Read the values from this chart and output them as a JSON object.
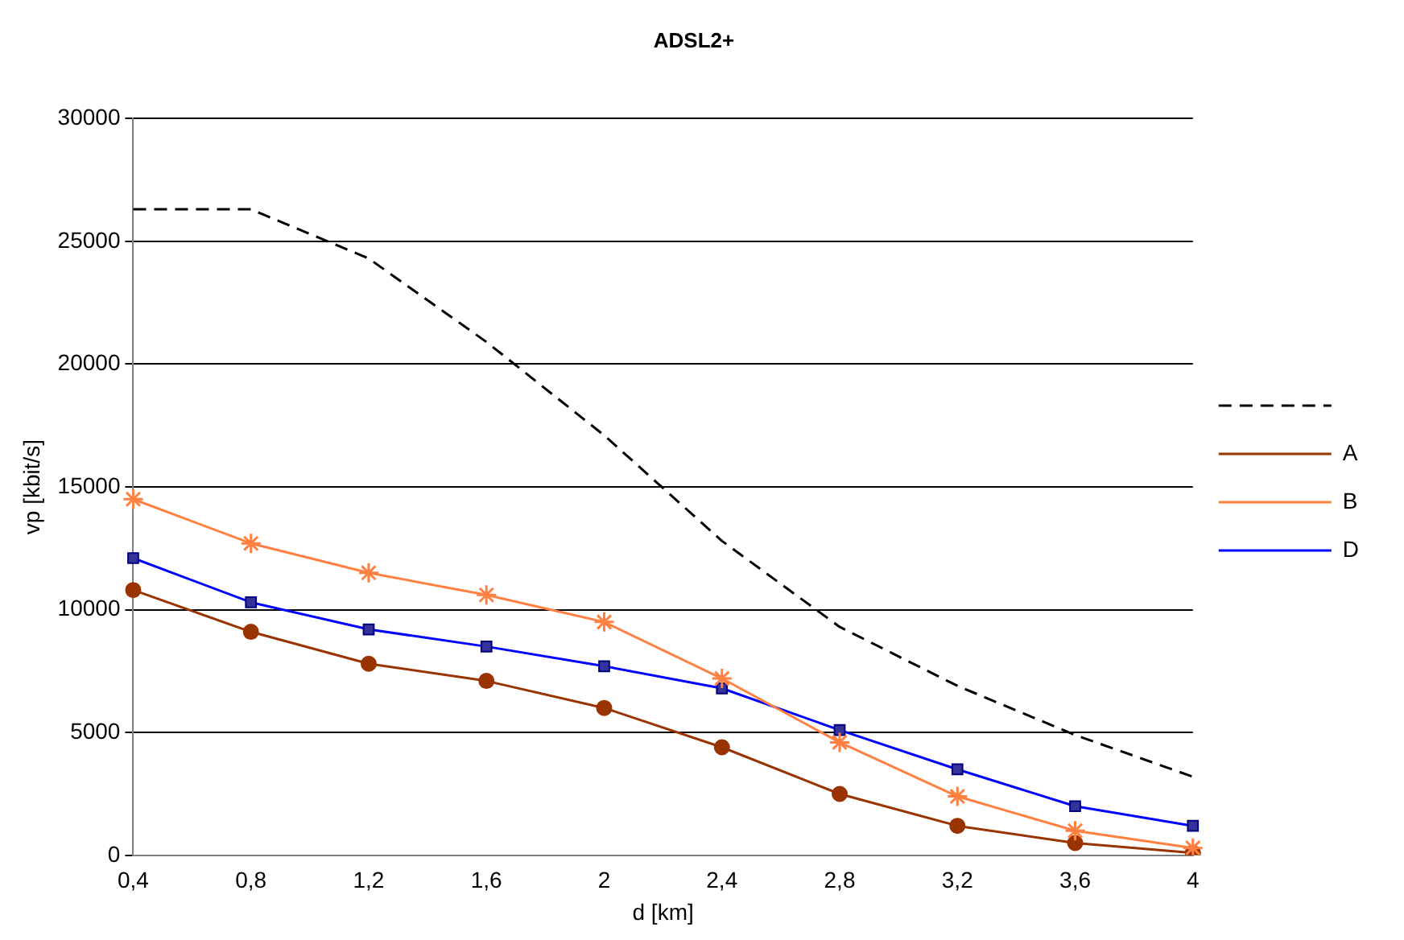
{
  "chart_data": {
    "type": "line",
    "title": "ADSL2+",
    "xlabel": "d [km]",
    "ylabel": "vp [kbit/s]",
    "categories": [
      "0,4",
      "0,8",
      "1,2",
      "1,6",
      "2",
      "2,4",
      "2,8",
      "3,2",
      "3,6",
      "4"
    ],
    "ylim": [
      0,
      30000
    ],
    "yticks": [
      0,
      5000,
      10000,
      15000,
      20000,
      25000,
      30000
    ],
    "grid": "y",
    "legend": "right",
    "series": [
      {
        "color": "#000000",
        "line_style": "dashed",
        "marker": "none",
        "values": [
          26300,
          26300,
          24300,
          20900,
          17100,
          12800,
          9300,
          6900,
          4900,
          3200
        ]
      },
      {
        "name": "A",
        "color": "#993300",
        "marker": "circle",
        "values": [
          10800,
          9100,
          7800,
          7100,
          6000,
          4400,
          2500,
          1200,
          500,
          100
        ]
      },
      {
        "name": "B",
        "color": "#ff8040",
        "marker": "cross",
        "values": [
          14500,
          12700,
          11500,
          10600,
          9500,
          7200,
          4600,
          2400,
          1000,
          300
        ]
      },
      {
        "name": "D",
        "color": "#0000ff",
        "marker": "square",
        "values": [
          12100,
          10300,
          9200,
          8500,
          7700,
          6800,
          5100,
          3500,
          2000,
          1200
        ]
      }
    ]
  }
}
